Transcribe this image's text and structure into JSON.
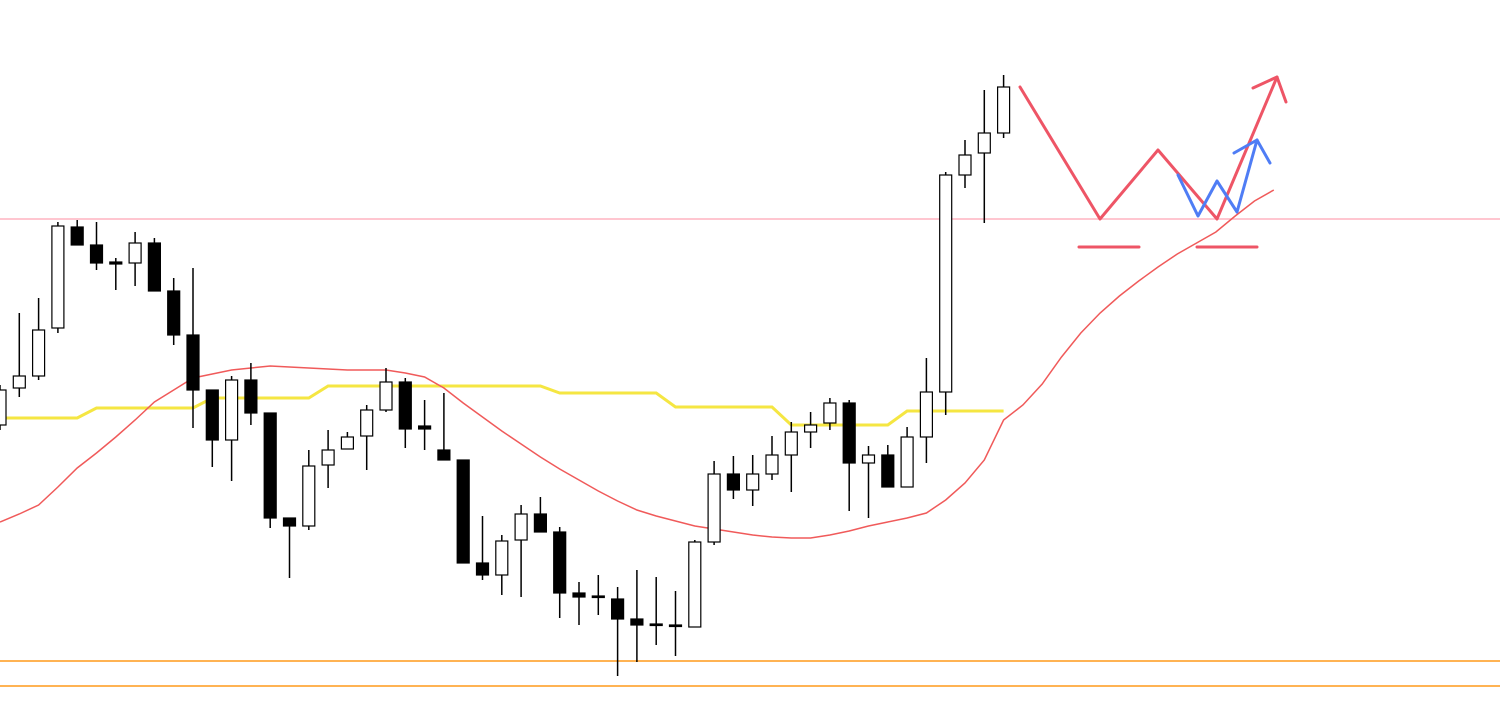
{
  "chart_data": {
    "type": "candlestick",
    "ylim": [
      0,
      723
    ],
    "up_color": "#ffffff",
    "down_color": "#000000",
    "open": [
      298,
      335,
      347,
      395,
      496,
      478,
      461,
      460,
      480,
      432,
      388,
      333,
      283,
      343,
      310,
      205,
      197,
      258,
      274,
      287,
      313,
      341,
      297,
      273,
      263,
      160,
      148,
      183,
      209,
      191,
      130,
      127,
      124,
      104,
      99,
      98,
      96,
      181,
      249,
      233,
      249,
      268,
      291,
      300,
      320,
      260,
      268,
      236,
      286,
      331,
      548,
      570,
      590,
      null,
      null,
      null,
      null,
      null,
      null,
      null,
      null,
      null,
      null,
      null,
      null,
      null,
      null
    ],
    "high": [
      338,
      410,
      425,
      501,
      503,
      501,
      465,
      491,
      485,
      445,
      455,
      333,
      347,
      360,
      310,
      205,
      273,
      293,
      291,
      318,
      355,
      345,
      323,
      330,
      263,
      207,
      188,
      218,
      226,
      196,
      141,
      148,
      136,
      153,
      146,
      132,
      183,
      262,
      267,
      268,
      287,
      301,
      311,
      325,
      323,
      277,
      278,
      296,
      365,
      551,
      583,
      633,
      648,
      null,
      null,
      null,
      null,
      null,
      null,
      null,
      null,
      null,
      null,
      null,
      null,
      null,
      null
    ],
    "low": [
      293,
      326,
      343,
      390,
      478,
      453,
      433,
      437,
      432,
      378,
      295,
      256,
      242,
      298,
      195,
      145,
      193,
      235,
      274,
      253,
      311,
      275,
      273,
      263,
      160,
      143,
      128,
      126,
      191,
      105,
      98,
      108,
      47,
      61,
      78,
      67,
      96,
      178,
      224,
      217,
      243,
      231,
      275,
      293,
      212,
      205,
      236,
      236,
      260,
      308,
      535,
      500,
      585,
      null,
      null,
      null,
      null,
      null,
      null,
      null,
      null,
      null,
      null,
      null,
      null,
      null,
      null
    ],
    "close": [
      333,
      347,
      393,
      497,
      478,
      460,
      459,
      480,
      432,
      388,
      333,
      283,
      343,
      310,
      205,
      197,
      257,
      273,
      286,
      313,
      341,
      294,
      294,
      263,
      160,
      148,
      182,
      209,
      191,
      130,
      126,
      126,
      104,
      98,
      98,
      97,
      181,
      249,
      233,
      249,
      268,
      291,
      298,
      320,
      260,
      268,
      236,
      286,
      331,
      548,
      568,
      590,
      636,
      null,
      null,
      null,
      null,
      null,
      null,
      null,
      null,
      null,
      null,
      null,
      null,
      null,
      null
    ],
    "series": [
      {
        "color": "#f5e642",
        "values": [
          305,
          305,
          305,
          305,
          305,
          315,
          315,
          315,
          315,
          315,
          315,
          325,
          325,
          325,
          325,
          325,
          325,
          337,
          337,
          337,
          337,
          337,
          337,
          337,
          337,
          337,
          337,
          337,
          337,
          330,
          330,
          330,
          330,
          330,
          330,
          316,
          316,
          316,
          316,
          316,
          316,
          298,
          298,
          298,
          298,
          298,
          298,
          312,
          312,
          312,
          312,
          312,
          312,
          null,
          null,
          null,
          null,
          null,
          null,
          null,
          null,
          null,
          null,
          null,
          null,
          null,
          null
        ]
      },
      {
        "color": "#f05a5a",
        "values": [
          201,
          209,
          218,
          236,
          255,
          270,
          286,
          303,
          321,
          333,
          345,
          349,
          353,
          355,
          357,
          356,
          355,
          354,
          353,
          353,
          353,
          350,
          346,
          335,
          320,
          306,
          292,
          279,
          266,
          254,
          243,
          232,
          222,
          213,
          207,
          202,
          197,
          194,
          191,
          188,
          186,
          185,
          185,
          188,
          192,
          197,
          201,
          205,
          210,
          223,
          240,
          263,
          303,
          318,
          339,
          366,
          390,
          410,
          427,
          442,
          456,
          469,
          480,
          491,
          507,
          522,
          533
        ]
      }
    ],
    "hlines": [
      {
        "value": 504,
        "color": "#ffb3c1"
      },
      {
        "value": 62,
        "color": "#ff9a1a"
      },
      {
        "value": 37,
        "color": "#ff9a1a"
      }
    ]
  }
}
